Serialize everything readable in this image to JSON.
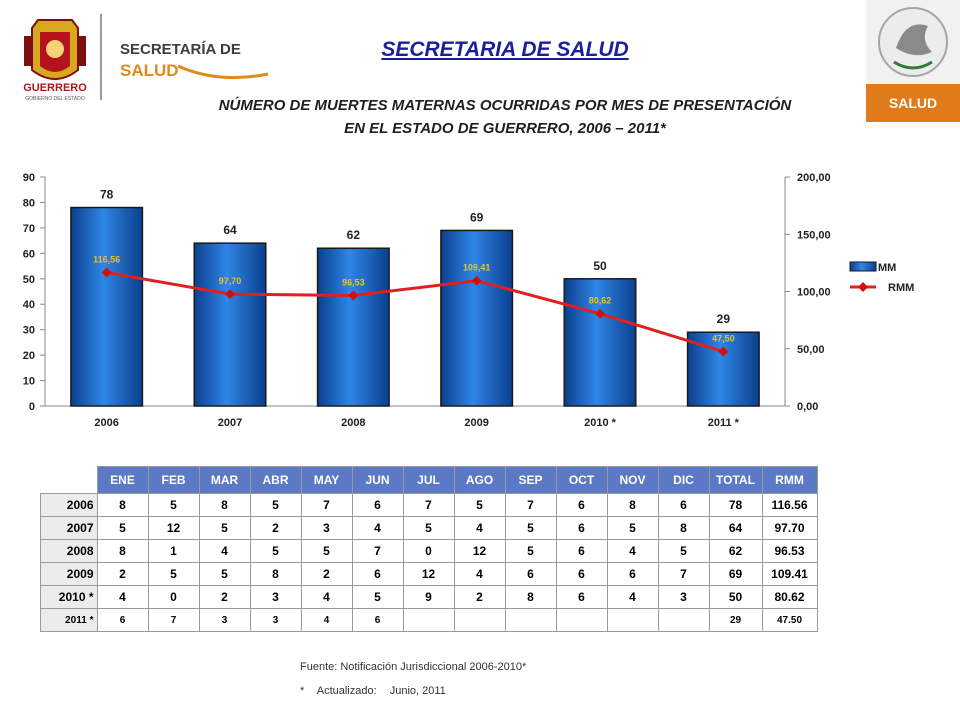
{
  "header": {
    "left_logo_text": "GUERRERO",
    "left_logo_subtext": "GOBIERNO DEL ESTADO",
    "secretaria_line1": "SECRETARÍA DE",
    "secretaria_line2": "SALUD",
    "right_logo_label": "SALUD",
    "main_title": "SECRETARIA DE SALUD",
    "chart_title_line1": "NÚMERO DE MUERTES MATERNAS OCURRIDAS POR MES DE PRESENTACIÓN",
    "chart_title_line2": "EN EL ESTADO DE GUERRERO, 2006 – 2011*"
  },
  "colors": {
    "bar": "#1f6fd1",
    "line": "#e02020",
    "title": "#1b1f9a",
    "table_header": "#5b79c4"
  },
  "chart_data": {
    "type": "bar",
    "categories": [
      "2006",
      "2007",
      "2008",
      "2009",
      "2010 *",
      "2011 *"
    ],
    "series": [
      {
        "name": "MM",
        "type": "bar",
        "axis": "left",
        "values": [
          78,
          64,
          62,
          69,
          50,
          29
        ],
        "labels": [
          "78",
          "64",
          "62",
          "69",
          "50",
          "29"
        ]
      },
      {
        "name": "RMM",
        "type": "line",
        "axis": "right",
        "values": [
          116.56,
          97.7,
          96.53,
          109.41,
          80.62,
          47.5
        ],
        "labels": [
          "116,56",
          "97,70",
          "96,53",
          "109,41",
          "80,62",
          "47,50"
        ]
      }
    ],
    "y_left": {
      "min": 0,
      "max": 90,
      "ticks": [
        "0",
        "10",
        "20",
        "30",
        "40",
        "50",
        "60",
        "70",
        "80",
        "90"
      ]
    },
    "y_right": {
      "min": 0,
      "max": 200,
      "ticks": [
        "0,00",
        "50,00",
        "100,00",
        "150,00",
        "200,00"
      ]
    },
    "legend": {
      "position": "right",
      "entries": [
        "MM",
        "RMM"
      ]
    },
    "grid": false
  },
  "table": {
    "headers": [
      "ENE",
      "FEB",
      "MAR",
      "ABR",
      "MAY",
      "JUN",
      "JUL",
      "AGO",
      "SEP",
      "OCT",
      "NOV",
      "DIC",
      "TOTAL",
      "RMM"
    ],
    "rows": [
      {
        "label": "2006",
        "cells": [
          "8",
          "5",
          "8",
          "5",
          "7",
          "6",
          "7",
          "5",
          "7",
          "6",
          "8",
          "6",
          "78",
          "116.56"
        ]
      },
      {
        "label": "2007",
        "cells": [
          "5",
          "12",
          "5",
          "2",
          "3",
          "4",
          "5",
          "4",
          "5",
          "6",
          "5",
          "8",
          "64",
          "97.70"
        ]
      },
      {
        "label": "2008",
        "cells": [
          "8",
          "1",
          "4",
          "5",
          "5",
          "7",
          "0",
          "12",
          "5",
          "6",
          "4",
          "5",
          "62",
          "96.53"
        ]
      },
      {
        "label": "2009",
        "cells": [
          "2",
          "5",
          "5",
          "8",
          "2",
          "6",
          "12",
          "4",
          "6",
          "6",
          "6",
          "7",
          "69",
          "109.41"
        ]
      },
      {
        "label": "2010 *",
        "cells": [
          "4",
          "0",
          "2",
          "3",
          "4",
          "5",
          "9",
          "2",
          "8",
          "6",
          "4",
          "3",
          "50",
          "80.62"
        ]
      },
      {
        "label": "2011 *",
        "cells": [
          "6",
          "7",
          "3",
          "3",
          "4",
          "6",
          "",
          "",
          "",
          "",
          "",
          "",
          "29",
          "47.50"
        ]
      }
    ]
  },
  "footer": {
    "source": "Fuente: Notificación Jurisdiccional 2006-2010*",
    "updated_mark": "*",
    "updated_label": "Actualizado:",
    "updated_value": "Junio, 2011"
  }
}
